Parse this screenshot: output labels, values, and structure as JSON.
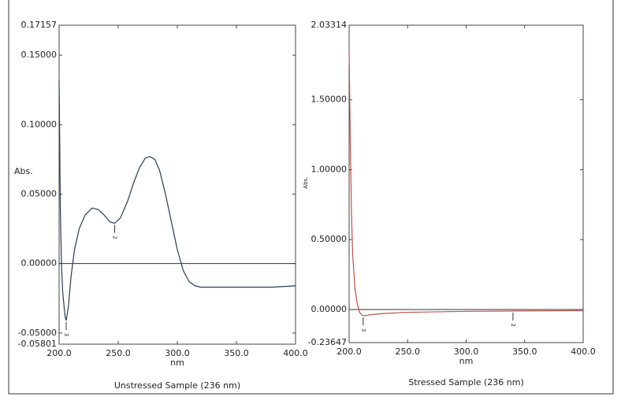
{
  "chart_data": [
    {
      "type": "line",
      "title": "Unstressed Sample (236 nm)",
      "xlabel": "nm",
      "ylabel": "Abs.",
      "xlim": [
        200,
        400
      ],
      "ylim": [
        -0.05801,
        0.17157
      ],
      "xticks": [
        {
          "value": 200,
          "label": "200.0"
        },
        {
          "value": 250,
          "label": "250.0"
        },
        {
          "value": 300,
          "label": "300.0"
        },
        {
          "value": 350,
          "label": "350.0"
        },
        {
          "value": 400,
          "label": "400.0"
        }
      ],
      "yticks": [
        {
          "value": 0.17157,
          "label": "0.17157"
        },
        {
          "value": 0.15,
          "label": "0.15000"
        },
        {
          "value": 0.1,
          "label": "0.10000"
        },
        {
          "value": 0.05,
          "label": "0.05000"
        },
        {
          "value": 0,
          "label": "0.00000"
        },
        {
          "value": -0.05,
          "label": "-0.05000"
        },
        {
          "value": -0.05801,
          "label": "-0.05801"
        }
      ],
      "series": [
        {
          "color": "#2a3a5a",
          "x": [
            200,
            200.5,
            201,
            202,
            203,
            205,
            206,
            208,
            210,
            213,
            217,
            222,
            228,
            233,
            238,
            243,
            247,
            252,
            258,
            263,
            268,
            273,
            277,
            281,
            285,
            290,
            295,
            300,
            305,
            310,
            315,
            320,
            340,
            360,
            380,
            400
          ],
          "values": [
            0.132,
            0.09,
            0.04,
            0.0,
            -0.02,
            -0.038,
            -0.041,
            -0.03,
            -0.01,
            0.01,
            0.025,
            0.035,
            0.04,
            0.039,
            0.035,
            0.03,
            0.029,
            0.033,
            0.045,
            0.058,
            0.069,
            0.076,
            0.077,
            0.075,
            0.067,
            0.05,
            0.03,
            0.01,
            -0.005,
            -0.013,
            -0.016,
            -0.017,
            -0.017,
            -0.017,
            -0.017,
            -0.016
          ]
        }
      ],
      "peaks": [
        {
          "label": "3",
          "x": 206,
          "y": -0.041
        },
        {
          "label": "2",
          "x": 247,
          "y": 0.029
        }
      ]
    },
    {
      "type": "line",
      "title": "Stressed Sample (236 nm)",
      "xlabel": "nm",
      "ylabel": "Abs.",
      "xlim": [
        200,
        400
      ],
      "ylim": [
        -0.23647,
        2.03314
      ],
      "xticks": [
        {
          "value": 200,
          "label": "200.0"
        },
        {
          "value": 250,
          "label": "250.0"
        },
        {
          "value": 300,
          "label": "300.0"
        },
        {
          "value": 350,
          "label": "350.0"
        },
        {
          "value": 400,
          "label": "400.0"
        }
      ],
      "yticks": [
        {
          "value": 2.03314,
          "label": "2.03314"
        },
        {
          "value": 1.5,
          "label": "1.50000"
        },
        {
          "value": 1,
          "label": "1.00000"
        },
        {
          "value": 0.5,
          "label": "0.50000"
        },
        {
          "value": 0,
          "label": "0.00000"
        },
        {
          "value": -0.23647,
          "label": "-0.23647"
        }
      ],
      "series": [
        {
          "color": "#c0504d",
          "x": [
            200,
            201,
            202,
            203,
            205,
            207,
            209,
            211,
            213,
            216,
            220,
            230,
            250,
            300,
            350,
            400
          ],
          "values": [
            1.84,
            1.2,
            0.7,
            0.4,
            0.15,
            0.04,
            -0.02,
            -0.04,
            -0.045,
            -0.04,
            -0.035,
            -0.028,
            -0.02,
            -0.013,
            -0.01,
            -0.008
          ]
        }
      ],
      "peaks": [
        {
          "label": "3",
          "x": 212,
          "y": -0.045
        },
        {
          "label": "2",
          "x": 340,
          "y": -0.01
        }
      ]
    }
  ]
}
